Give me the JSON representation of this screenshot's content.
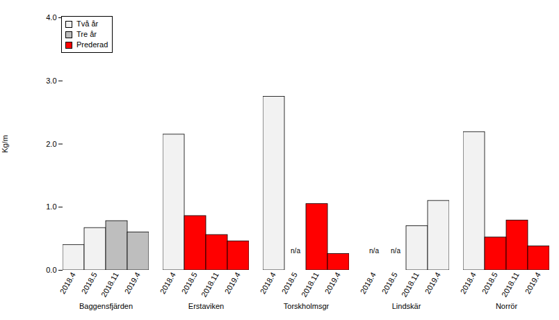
{
  "chart_data": {
    "type": "bar",
    "y_label": "Kg/m",
    "categories": [
      "Baggensfjärden",
      "Erstaviken",
      "Torskholmsgr",
      "Lindskär",
      "Norrör"
    ],
    "subcategories": [
      "2018.4",
      "2018.5",
      "2018.11",
      "2019.4"
    ],
    "series": [
      {
        "name": "Två år",
        "color": "#f2f2f2",
        "values": [
          [
            0.4,
            0.67,
            null,
            null
          ],
          [
            2.15,
            null,
            null,
            null
          ],
          [
            2.75,
            null,
            null,
            null
          ],
          [
            null,
            null,
            0.7,
            1.1
          ],
          [
            2.19,
            null,
            null,
            null
          ]
        ]
      },
      {
        "name": "Tre år",
        "color": "#bebebe",
        "values": [
          [
            null,
            null,
            0.78,
            0.6
          ],
          [
            null,
            null,
            null,
            null
          ],
          [
            null,
            null,
            null,
            null
          ],
          [
            null,
            null,
            null,
            null
          ],
          [
            null,
            null,
            null,
            null
          ]
        ]
      },
      {
        "name": "Prederad",
        "color": "#ff0000",
        "values": [
          [
            null,
            null,
            null,
            null
          ],
          [
            null,
            0.86,
            0.56,
            0.46
          ],
          [
            null,
            null,
            1.05,
            0.26
          ],
          [
            null,
            null,
            null,
            null
          ],
          [
            null,
            0.52,
            0.79,
            0.38
          ]
        ]
      }
    ],
    "annotations": [
      {
        "category": "Torskholmsgr",
        "subcategory": "2018.5",
        "text": "n/a"
      },
      {
        "category": "Lindskär",
        "subcategory": "2018.4",
        "text": "n/a"
      },
      {
        "category": "Lindskär",
        "subcategory": "2018.5",
        "text": "n/a"
      }
    ],
    "ylim": [
      0,
      4
    ],
    "yticks": [
      0,
      1,
      2,
      3,
      4
    ],
    "grid": false,
    "legend": "top-left"
  }
}
